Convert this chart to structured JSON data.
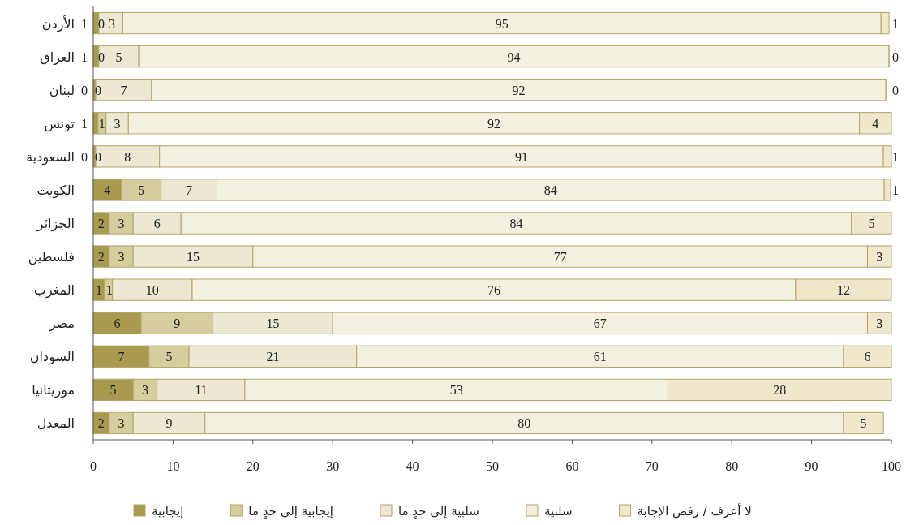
{
  "chart_data": {
    "type": "bar",
    "orientation": "horizontal",
    "stacked": true,
    "legend": "bottom",
    "grid": false,
    "categories": [
      "الأردن",
      "العراق",
      "لبنان",
      "تونس",
      "السعودية",
      "الكويت",
      "الجزائر",
      "فلسطين",
      "المغرب",
      "مصر",
      "السودان",
      "موريتانيا",
      "المعدل"
    ],
    "xlim": [
      0,
      100
    ],
    "xticks": [
      0,
      10,
      20,
      30,
      40,
      50,
      60,
      70,
      80,
      90,
      100
    ],
    "series": [
      {
        "name": "إيجابية",
        "color": "#a89a4e",
        "values": [
          0.7,
          0.7,
          0.3,
          0.6,
          0.3,
          3.5,
          2,
          2,
          1.4,
          6,
          7,
          5,
          2
        ],
        "value_labels": [
          "1",
          "1",
          "0",
          "1",
          "0",
          "4",
          "2",
          "2",
          "1",
          "6",
          "7",
          "5",
          "2"
        ]
      },
      {
        "name": "إيجابية إلى حدٍ ما",
        "color": "#d6cd9e",
        "values": [
          0,
          0,
          0,
          1,
          0,
          5,
          3,
          3,
          1,
          9,
          5,
          3,
          3
        ],
        "value_labels": [
          "0",
          "0",
          "0",
          "1",
          "0",
          "5",
          "3",
          "3",
          "1",
          "9",
          "5",
          "3",
          "3"
        ]
      },
      {
        "name": "سلبية إلى حدٍ ما",
        "color": "#ece8d4",
        "values": [
          3,
          5,
          7,
          2.8,
          8,
          7,
          6,
          15,
          10,
          15,
          21,
          11,
          9
        ],
        "value_labels": [
          "3",
          "5",
          "7",
          "3",
          "8",
          "7",
          "6",
          "15",
          "10",
          "15",
          "21",
          "11",
          "9"
        ]
      },
      {
        "name": "سلبية",
        "color": "#f4f0df",
        "values": [
          95,
          94,
          92,
          91.6,
          90.7,
          83.6,
          84,
          77,
          75.6,
          67,
          61,
          53,
          80
        ],
        "value_labels": [
          "95",
          "94",
          "92",
          "92",
          "91",
          "84",
          "84",
          "77",
          "76",
          "67",
          "61",
          "53",
          "80"
        ]
      },
      {
        "name": "لا أعرف / رفض الإجابة",
        "color": "#efe8cd",
        "values": [
          1,
          0,
          0,
          4,
          1,
          0.8,
          5,
          3,
          12,
          3,
          6,
          28,
          5
        ],
        "value_labels": [
          "1",
          "0",
          "0",
          "4",
          "1",
          "1",
          "5",
          "3",
          "12",
          "3",
          "6",
          "28",
          "5"
        ]
      }
    ]
  }
}
